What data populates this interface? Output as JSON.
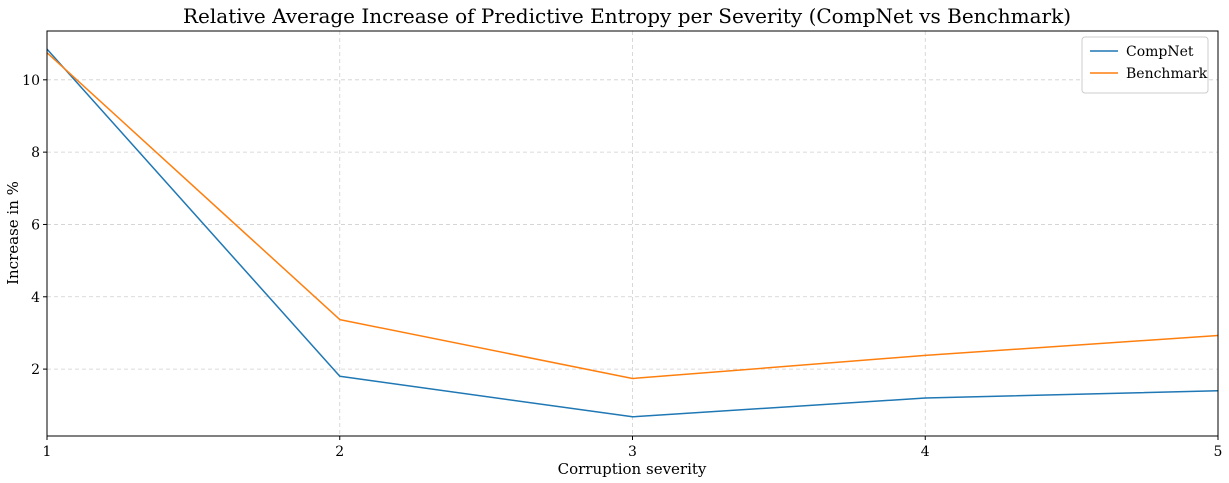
{
  "chart_data": {
    "type": "line",
    "title": "Relative Average Increase of Predictive Entropy per Severity (CompNet vs Benchmark)",
    "xlabel": "Corruption severity",
    "ylabel": "Increase in %",
    "x": [
      1,
      2,
      3,
      4,
      5
    ],
    "xlim": [
      1,
      5
    ],
    "ylim": [
      0.15,
      11.35
    ],
    "xticks": [
      1,
      2,
      3,
      4,
      5
    ],
    "yticks": [
      2,
      4,
      6,
      8,
      10
    ],
    "grid": true,
    "legend_position": "top-right",
    "series": [
      {
        "name": "CompNet",
        "color": "#1f77b4",
        "values": [
          10.85,
          1.8,
          0.68,
          1.2,
          1.4
        ]
      },
      {
        "name": "Benchmark",
        "color": "#ff7f0e",
        "values": [
          10.75,
          3.37,
          1.74,
          2.38,
          2.93
        ]
      }
    ]
  }
}
